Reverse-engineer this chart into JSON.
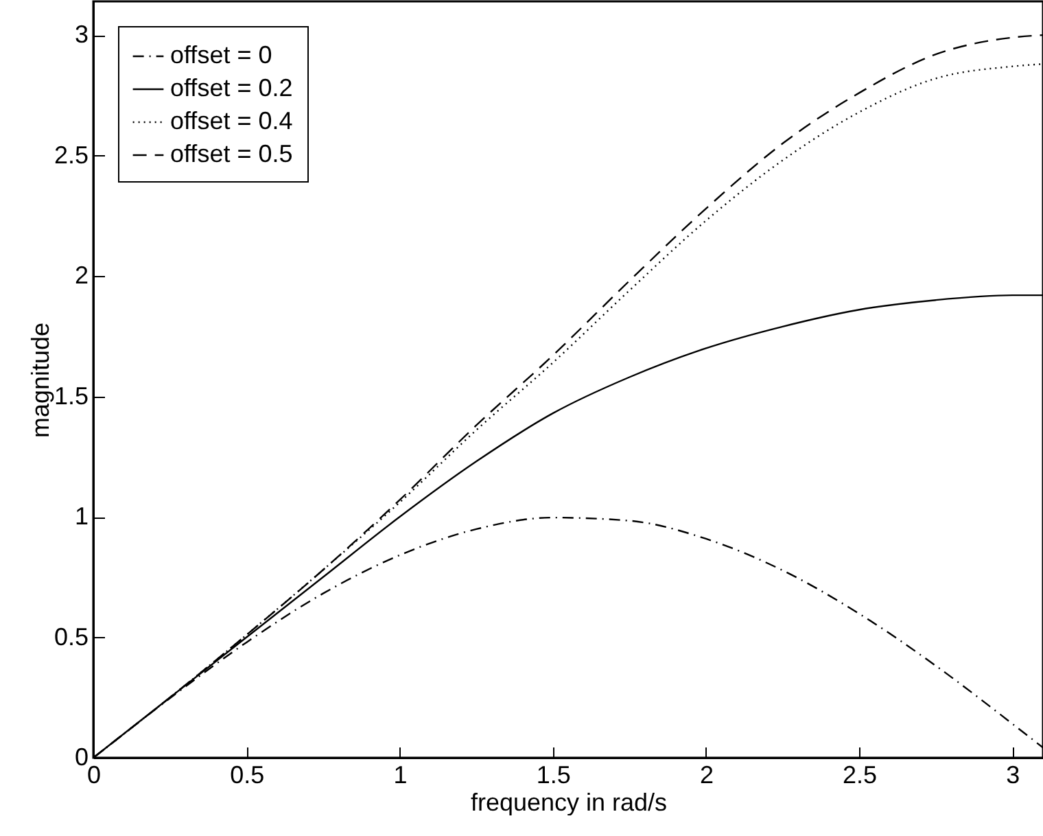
{
  "chart_data": {
    "type": "line",
    "xlabel": "frequency in rad/s",
    "ylabel": "magnitude",
    "x": [
      0,
      0.25,
      0.5,
      0.75,
      1,
      1.25,
      1.5,
      1.75,
      2,
      2.25,
      2.5,
      2.75,
      3,
      3.1
    ],
    "series": [
      {
        "name": "offset = 0",
        "color": "#000000",
        "line_style": "dashdot",
        "values": [
          0,
          0.247,
          0.479,
          0.682,
          0.841,
          0.949,
          0.997,
          0.984,
          0.909,
          0.778,
          0.598,
          0.382,
          0.141,
          0.042
        ]
      },
      {
        "name": "offset = 0.2",
        "color": "#000000",
        "line_style": "solid",
        "values": [
          0,
          0.25,
          0.5,
          0.75,
          1.0,
          1.23,
          1.43,
          1.58,
          1.7,
          1.79,
          1.86,
          1.9,
          1.92,
          1.92
        ]
      },
      {
        "name": "offset = 0.4",
        "color": "#000000",
        "line_style": "dotted",
        "values": [
          0,
          0.25,
          0.51,
          0.78,
          1.06,
          1.36,
          1.64,
          1.94,
          2.23,
          2.48,
          2.68,
          2.82,
          2.87,
          2.88
        ]
      },
      {
        "name": "offset = 0.5",
        "color": "#000000",
        "line_style": "dashed",
        "values": [
          0,
          0.25,
          0.51,
          0.78,
          1.07,
          1.38,
          1.67,
          1.98,
          2.28,
          2.55,
          2.76,
          2.92,
          2.99,
          3.0
        ]
      }
    ],
    "xlim": [
      0,
      3.1
    ],
    "xticks": [
      0,
      0.5,
      1,
      1.5,
      2,
      2.5,
      3
    ],
    "ylim": [
      0,
      3.14
    ],
    "yticks": [
      0,
      0.5,
      1,
      1.5,
      2,
      2.5,
      3
    ],
    "legend": "top left",
    "grid": false
  }
}
